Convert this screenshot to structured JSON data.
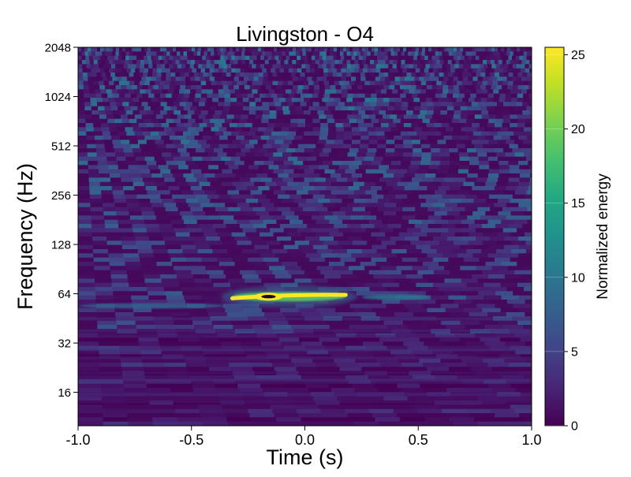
{
  "chart_data": {
    "type": "heatmap",
    "title": "Livingston - O4",
    "xlabel": "Time (s)",
    "ylabel": "Frequency (Hz)",
    "colorbar_label": "Normalized energy",
    "colormap": "viridis",
    "xlim": [
      -1.0,
      1.0
    ],
    "ylim": [
      10,
      2048
    ],
    "y_scale": "log2",
    "x_ticks": [
      {
        "value": -1.0,
        "label": "-1.0"
      },
      {
        "value": -0.5,
        "label": "-0.5"
      },
      {
        "value": 0.0,
        "label": "0.0"
      },
      {
        "value": 0.5,
        "label": "0.5"
      },
      {
        "value": 1.0,
        "label": "1.0"
      }
    ],
    "y_ticks": [
      {
        "value": 16,
        "label": "16"
      },
      {
        "value": 32,
        "label": "32"
      },
      {
        "value": 64,
        "label": "64"
      },
      {
        "value": 128,
        "label": "128"
      },
      {
        "value": 256,
        "label": "256"
      },
      {
        "value": 512,
        "label": "512"
      },
      {
        "value": 1024,
        "label": "1024"
      },
      {
        "value": 2048,
        "label": "2048"
      }
    ],
    "colorbar_range": [
      0,
      25.5
    ],
    "colorbar_ticks": [
      {
        "value": 0,
        "label": "0"
      },
      {
        "value": 5,
        "label": "5"
      },
      {
        "value": 10,
        "label": "10"
      },
      {
        "value": 15,
        "label": "15"
      },
      {
        "value": 20,
        "label": "20"
      },
      {
        "value": 25,
        "label": "25"
      }
    ],
    "features": [
      {
        "kind": "chirp",
        "t_start": -0.32,
        "t_end": 0.18,
        "freq_start": 60,
        "freq_end": 63,
        "peak_energy": 25.5
      },
      {
        "kind": "faint-tail",
        "t_start": 0.25,
        "t_end": 0.55,
        "freq": 61,
        "energy": 10
      },
      {
        "kind": "faint-lobe",
        "t_start": -1.0,
        "t_end": -0.35,
        "freq": 54,
        "energy": 8
      }
    ],
    "grid": false,
    "legend": "none"
  }
}
